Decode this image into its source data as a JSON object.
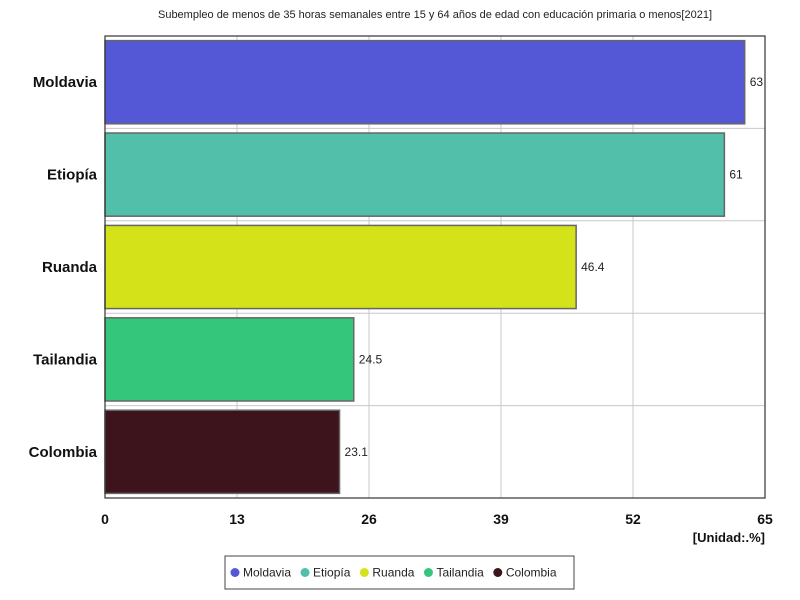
{
  "chart_data": {
    "type": "bar",
    "orientation": "horizontal",
    "title": "Subempleo de menos de 35 horas semanales entre 15 y 64 años de edad con educación primaria o menos[2021]",
    "categories": [
      "Moldavia",
      "Etiopía",
      "Ruanda",
      "Tailandia",
      "Colombia"
    ],
    "values": [
      63,
      61,
      46.4,
      24.5,
      23.1
    ],
    "value_labels": [
      "63",
      "61",
      "46.4",
      "24.5",
      "23.1"
    ],
    "colors": [
      "#5558d6",
      "#52bfaa",
      "#d4e21a",
      "#34c67b",
      "#3d141b"
    ],
    "xlim": [
      0,
      65
    ],
    "x_ticks": [
      "0",
      "13",
      "26",
      "39",
      "52",
      "65"
    ],
    "unit": "[Unidad:.%]",
    "grid": true,
    "legend_position": "bottom-center"
  }
}
